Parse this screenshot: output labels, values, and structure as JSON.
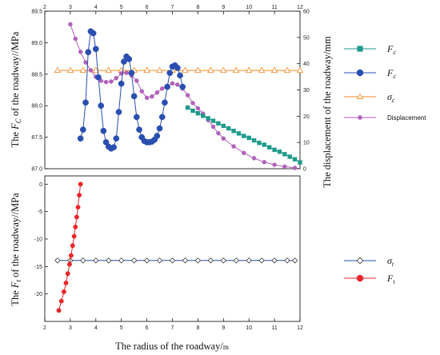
{
  "chart_data": [
    {
      "type": "line",
      "panel": "upper",
      "ylabel_left": "The F_C of the roadway//MPa",
      "ylabel_right": "The displacement of the roadway/mm",
      "xlim": [
        2,
        12
      ],
      "ylim_left": [
        87.0,
        89.5
      ],
      "ylim_right": [
        0,
        60
      ],
      "xticks_top": [
        "2",
        "3",
        "4",
        "5",
        "6",
        "7",
        "8",
        "9",
        "10",
        "11",
        "12"
      ],
      "yticks_left": [
        "87.0",
        "87.5",
        "88.0",
        "88.5",
        "89.0",
        "89.5"
      ],
      "yticks_right": [
        "0",
        "10",
        "20",
        "30",
        "40",
        "50",
        "60"
      ],
      "series": [
        {
          "name": "F_c",
          "legend_label": "F",
          "legend_sub": "c",
          "axis": "left",
          "color": "#1f9a8a",
          "marker": "square",
          "x": [
            7.6,
            7.8,
            8.0,
            8.2,
            8.4,
            8.6,
            8.8,
            9.0,
            9.2,
            9.4,
            9.6,
            9.8,
            10.0,
            10.2,
            10.4,
            10.6,
            10.8,
            11.0,
            11.2,
            11.4,
            11.6,
            11.8,
            12.0
          ],
          "y": [
            87.97,
            87.92,
            87.88,
            87.84,
            87.8,
            87.76,
            87.72,
            87.68,
            87.64,
            87.6,
            87.56,
            87.52,
            87.49,
            87.45,
            87.41,
            87.38,
            87.34,
            87.3,
            87.27,
            87.23,
            87.19,
            87.15,
            87.1
          ]
        },
        {
          "name": "F_c",
          "legend_label": "F",
          "legend_sub": "c",
          "axis": "left",
          "color": "#2a4fb0",
          "marker": "circle",
          "x": [
            3.4,
            3.5,
            3.6,
            3.7,
            3.8,
            3.9,
            4.0,
            4.1,
            4.2,
            4.3,
            4.4,
            4.5,
            4.6,
            4.7,
            4.8,
            4.9,
            5.0,
            5.1,
            5.2,
            5.3,
            5.4,
            5.5,
            5.6,
            5.7,
            5.8,
            5.9,
            6.0,
            6.1,
            6.2,
            6.3,
            6.4,
            6.5,
            6.6,
            6.7,
            6.8,
            6.9,
            7.0,
            7.1,
            7.2,
            7.3,
            7.4
          ],
          "y": [
            87.48,
            87.62,
            88.05,
            88.85,
            89.18,
            89.15,
            88.9,
            88.45,
            88.0,
            87.6,
            87.42,
            87.35,
            87.32,
            87.34,
            87.48,
            87.9,
            88.35,
            88.7,
            88.78,
            88.74,
            88.52,
            88.15,
            87.82,
            87.62,
            87.5,
            87.44,
            87.42,
            87.42,
            87.43,
            87.46,
            87.52,
            87.64,
            87.82,
            88.05,
            88.3,
            88.52,
            88.62,
            88.64,
            88.6,
            88.48,
            88.3
          ]
        },
        {
          "name": "σ_c",
          "legend_label": "σ",
          "legend_sub": "c",
          "axis": "left",
          "color": "#f08a24",
          "marker": "triangle",
          "x": [
            2.5,
            3.0,
            3.5,
            4.0,
            4.5,
            5.0,
            5.5,
            6.0,
            6.5,
            7.0,
            7.5,
            8.0,
            8.5,
            9.0,
            9.5,
            10.0,
            10.5,
            11.0,
            11.5,
            12.0
          ],
          "y": [
            88.56,
            88.56,
            88.56,
            88.56,
            88.56,
            88.56,
            88.56,
            88.56,
            88.56,
            88.56,
            88.56,
            88.56,
            88.56,
            88.56,
            88.56,
            88.56,
            88.56,
            88.56,
            88.56,
            88.56
          ]
        },
        {
          "name": "Displacement",
          "legend_label": "Displacement",
          "legend_sub": "",
          "axis": "right",
          "color": "#b062b8",
          "marker": "circle",
          "x": [
            3.0,
            3.2,
            3.4,
            3.6,
            3.8,
            4.0,
            4.2,
            4.4,
            4.6,
            4.8,
            5.0,
            5.2,
            5.4,
            5.6,
            5.8,
            6.0,
            6.2,
            6.4,
            6.6,
            6.8,
            7.0,
            7.2,
            7.4,
            7.6,
            7.8,
            8.0,
            8.2,
            8.4,
            8.6,
            8.8,
            9.0,
            9.4,
            9.8,
            10.2,
            10.6,
            11.0,
            11.4,
            11.8
          ],
          "y": [
            55.0,
            49.5,
            44.5,
            40.5,
            37.5,
            35.0,
            33.5,
            33.0,
            33.2,
            34.5,
            36.3,
            36.5,
            35.5,
            33.5,
            29.5,
            27.0,
            27.5,
            29.0,
            30.5,
            31.5,
            32.5,
            32.0,
            30.5,
            28.0,
            25.0,
            23.0,
            21.0,
            18.5,
            16.0,
            13.5,
            11.5,
            8.5,
            6.0,
            4.0,
            2.5,
            1.5,
            0.8,
            0.3
          ]
        }
      ]
    },
    {
      "type": "line",
      "panel": "lower",
      "xlabel": "The radius of the roadway/",
      "xlabel_unit": "m",
      "ylabel_left": "The F_t of the roadway//MPa",
      "xlim": [
        2,
        12
      ],
      "ylim_left": [
        -25,
        1.5
      ],
      "xticks": [
        "2",
        "3",
        "4",
        "5",
        "6",
        "7",
        "8",
        "9",
        "10",
        "11",
        "12"
      ],
      "yticks_left": [
        "0",
        "-5",
        "-10",
        "-15",
        "-20"
      ],
      "series": [
        {
          "name": "σ_t",
          "legend_label": "σ",
          "legend_sub": "t",
          "color": "#2a4fb0",
          "marker": "diamond",
          "x": [
            2.5,
            3.0,
            3.5,
            4.0,
            4.5,
            5.0,
            5.5,
            6.0,
            6.5,
            7.0,
            7.5,
            8.0,
            8.5,
            9.0,
            9.5,
            10.0,
            10.5,
            11.0,
            11.5,
            11.8
          ],
          "y": [
            -13.9,
            -13.9,
            -13.9,
            -13.9,
            -13.9,
            -13.9,
            -13.9,
            -13.9,
            -13.9,
            -13.9,
            -13.9,
            -13.9,
            -13.9,
            -13.9,
            -13.9,
            -13.9,
            -13.9,
            -13.9,
            -13.9,
            -13.9
          ]
        },
        {
          "name": "F_t",
          "legend_label": "F",
          "legend_sub": "t",
          "color": "#e8252a",
          "marker": "circle",
          "x": [
            2.55,
            2.65,
            2.75,
            2.83,
            2.9,
            2.97,
            3.03,
            3.09,
            3.15,
            3.2,
            3.25,
            3.3,
            3.35,
            3.4
          ],
          "y": [
            -23.0,
            -21.3,
            -19.6,
            -18.0,
            -16.3,
            -14.6,
            -13.0,
            -11.2,
            -9.5,
            -7.8,
            -6.0,
            -4.2,
            -2.0,
            0.0
          ]
        }
      ]
    }
  ]
}
